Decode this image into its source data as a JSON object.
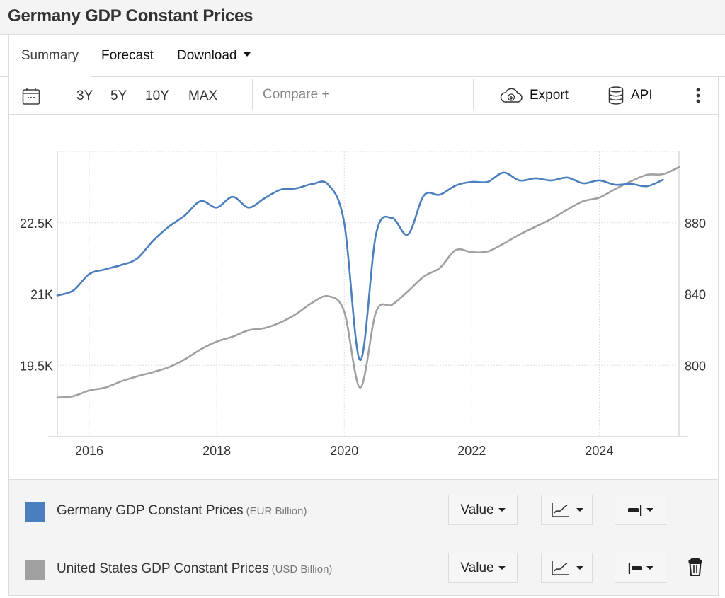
{
  "page": {
    "title": "Germany GDP Constant Prices"
  },
  "tabs": [
    {
      "label": "Summary",
      "active": true
    },
    {
      "label": "Forecast",
      "active": false
    },
    {
      "label": "Download",
      "active": false,
      "has_dropdown": true
    }
  ],
  "toolbar": {
    "calendar_icon": "calendar-icon",
    "ranges": [
      "3Y",
      "5Y",
      "10Y",
      "MAX"
    ],
    "compare_placeholder": "Compare +",
    "compare_value": "",
    "export_label": "Export",
    "export_icon": "cloud-download-icon",
    "api_label": "API",
    "api_icon": "database-icon",
    "more_icon": "vertical-dots-icon"
  },
  "legend": {
    "series": [
      {
        "name": "Germany GDP Constant Prices",
        "unit": "(EUR Billion)",
        "color": "#4a7ebf",
        "value_label": "Value",
        "chart_type_icon": "line-chart-icon",
        "axis_icon": "right-axis-icon"
      },
      {
        "name": "United States GDP Constant Prices",
        "unit": "(USD Billion)",
        "color": "#a0a0a0",
        "value_label": "Value",
        "chart_type_icon": "line-chart-icon",
        "axis_icon": "left-axis-icon",
        "removable": true
      }
    ]
  },
  "chart_data": {
    "type": "line",
    "title": "",
    "xlabel": "",
    "ylabel_left": "",
    "ylabel_right": "",
    "x": [
      2015.5,
      2015.75,
      2016.0,
      2016.25,
      2016.5,
      2016.75,
      2017.0,
      2017.25,
      2017.5,
      2017.75,
      2018.0,
      2018.25,
      2018.5,
      2018.75,
      2019.0,
      2019.25,
      2019.5,
      2019.75,
      2020.0,
      2020.25,
      2020.5,
      2020.75,
      2021.0,
      2021.25,
      2021.5,
      2021.75,
      2022.0,
      2022.25,
      2022.5,
      2022.75,
      2023.0,
      2023.25,
      2023.5,
      2023.75,
      2024.0,
      2024.25,
      2024.5,
      2024.75,
      2025.0,
      2025.25
    ],
    "x_ticks": [
      2016,
      2018,
      2020,
      2022,
      2024
    ],
    "x_tick_labels": [
      "2016",
      "2018",
      "2020",
      "2022",
      "2024"
    ],
    "xlim": [
      2015.5,
      2025.25
    ],
    "y_left": {
      "ticks": [
        19500,
        21000,
        22500
      ],
      "tick_labels": [
        "19.5K",
        "21K",
        "22.5K"
      ],
      "ylim": [
        18000,
        24000
      ]
    },
    "y_right": {
      "ticks": [
        800,
        840,
        880
      ],
      "tick_labels": [
        "800",
        "840",
        "880"
      ],
      "ylim": [
        760,
        920
      ]
    },
    "grid": true,
    "legend_position": "bottom",
    "series": [
      {
        "name": "Germany GDP Constant Prices",
        "axis": "left",
        "color": "#4a7ebf",
        "values": [
          20970,
          21075,
          21420,
          21520,
          21610,
          21745,
          22120,
          22420,
          22655,
          22955,
          22820,
          23045,
          22820,
          23015,
          23195,
          23225,
          23315,
          23300,
          22495,
          19610,
          22270,
          22600,
          22255,
          23075,
          23090,
          23285,
          23360,
          23360,
          23555,
          23390,
          23435,
          23390,
          23450,
          23330,
          23390,
          23300,
          23315,
          23270,
          23405,
          null
        ]
      },
      {
        "name": "United States GDP Constant Prices",
        "axis": "right",
        "color": "#a0a0a0",
        "values": [
          781.9,
          782.7,
          785.9,
          787.5,
          791.0,
          793.8,
          796.2,
          799.0,
          803.4,
          809.0,
          813.3,
          816.1,
          819.7,
          820.9,
          824.1,
          828.9,
          835.2,
          838.8,
          830.1,
          787.5,
          830.1,
          834.0,
          841.6,
          849.9,
          854.7,
          864.7,
          863.5,
          863.9,
          868.3,
          873.4,
          877.8,
          882.2,
          887.4,
          892.1,
          894.1,
          898.9,
          903.3,
          906.9,
          907.3,
          911.2
        ]
      }
    ]
  }
}
